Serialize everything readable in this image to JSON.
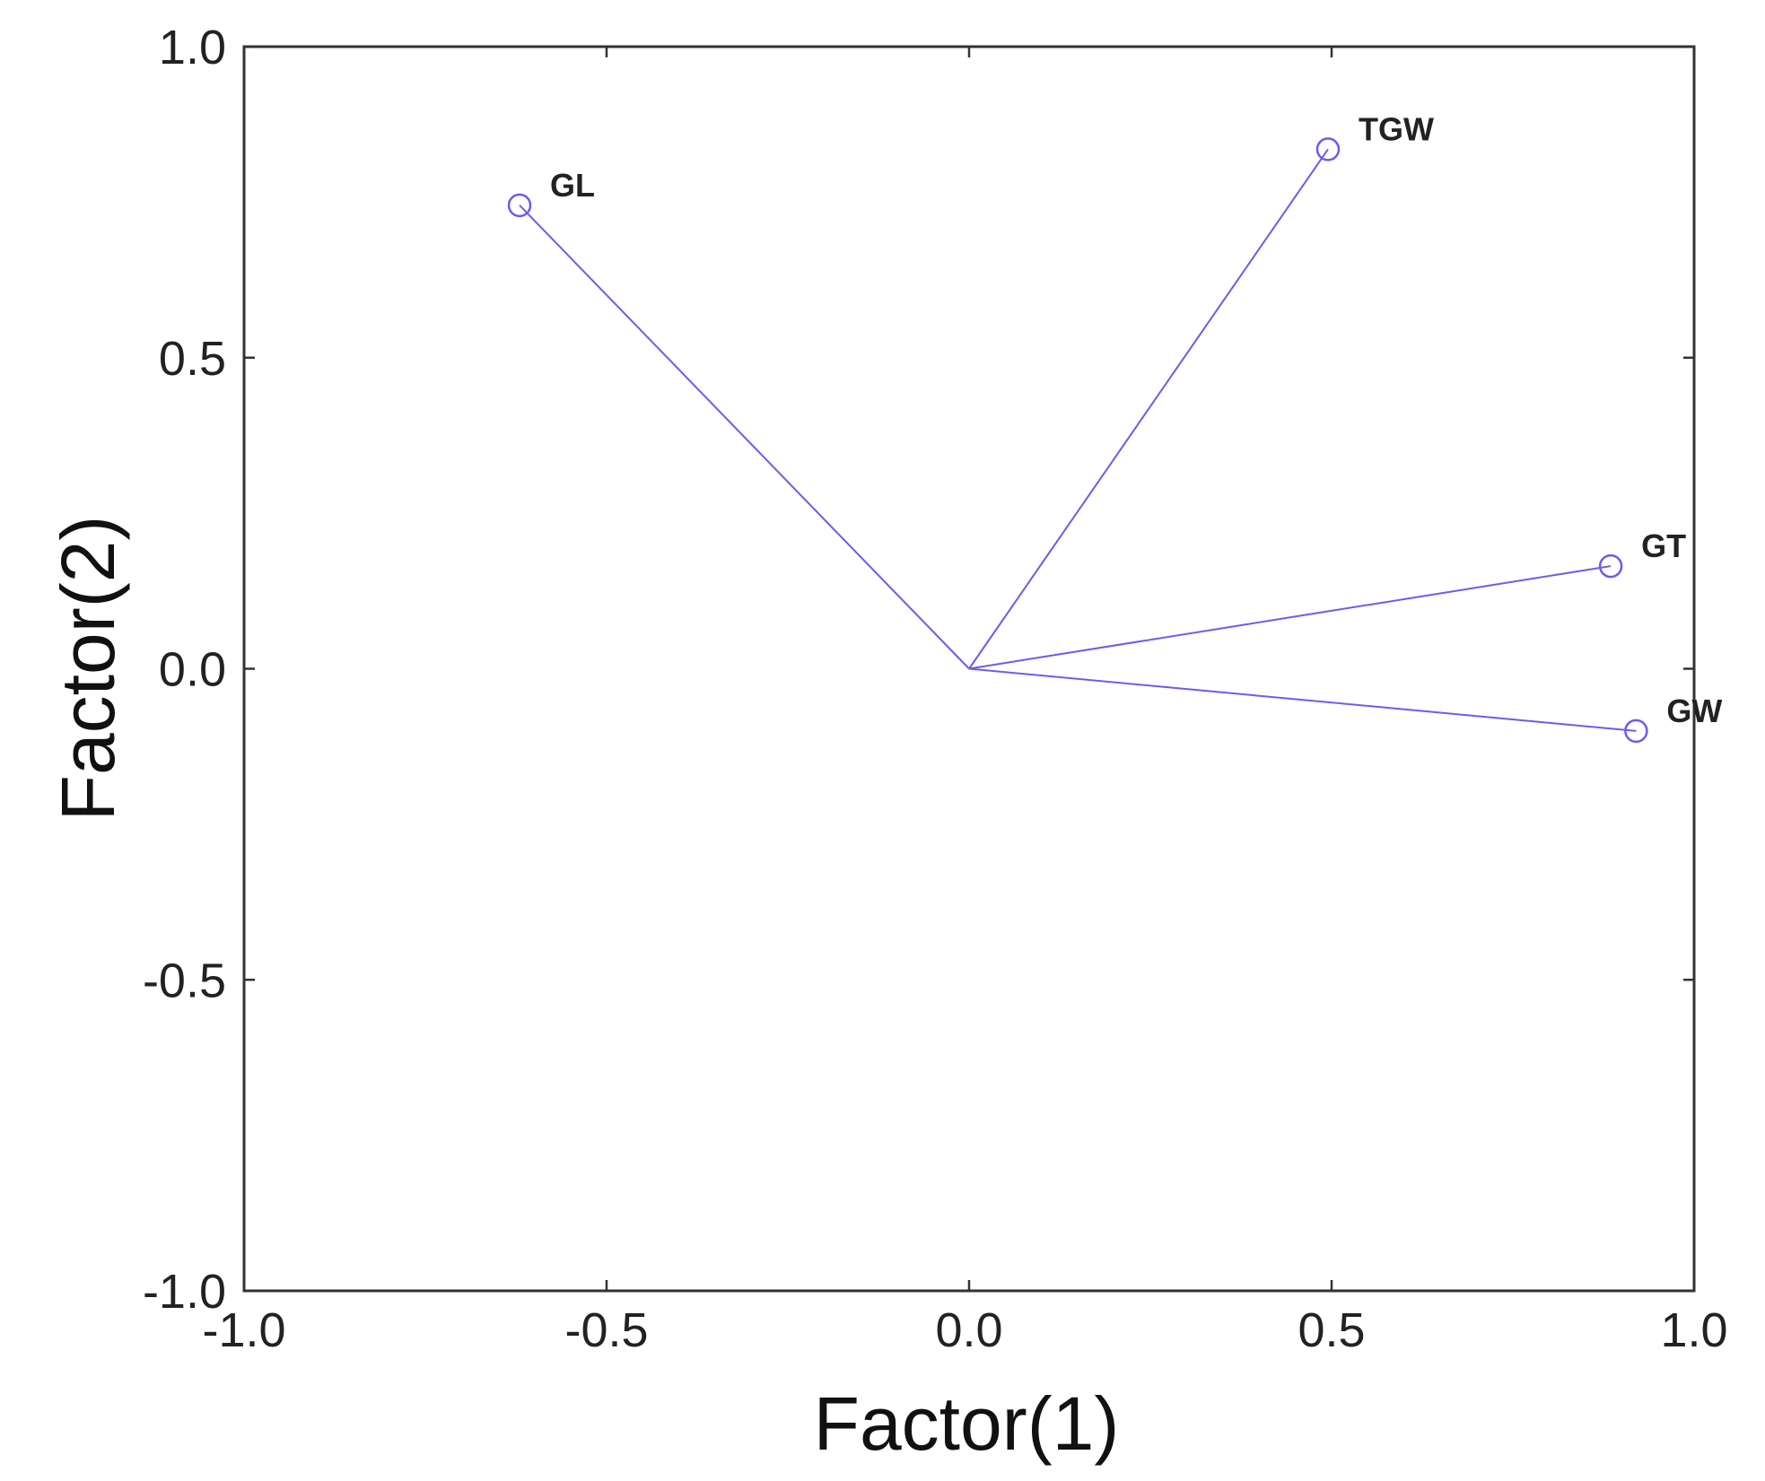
{
  "chart_data": {
    "type": "scatter",
    "title": "",
    "xlabel": "Factor(1)",
    "ylabel": "Factor(2)",
    "xlim": [
      -1.0,
      1.0
    ],
    "ylim": [
      -1.0,
      1.0
    ],
    "xticks": [
      "-1.0",
      "-0.5",
      "0.0",
      "0.5",
      "1.0"
    ],
    "yticks": [
      "1.0",
      "0.5",
      "0.0",
      "-0.5",
      "-1.0"
    ],
    "grid": false,
    "vectors_from_origin": true,
    "color": "#6b5cf0",
    "points": [
      {
        "label": "GL",
        "x": -0.62,
        "y": 0.745
      },
      {
        "label": "TGW",
        "x": 0.495,
        "y": 0.835
      },
      {
        "label": "GT",
        "x": 0.885,
        "y": 0.165
      },
      {
        "label": "GW",
        "x": 0.92,
        "y": -0.1
      }
    ]
  }
}
